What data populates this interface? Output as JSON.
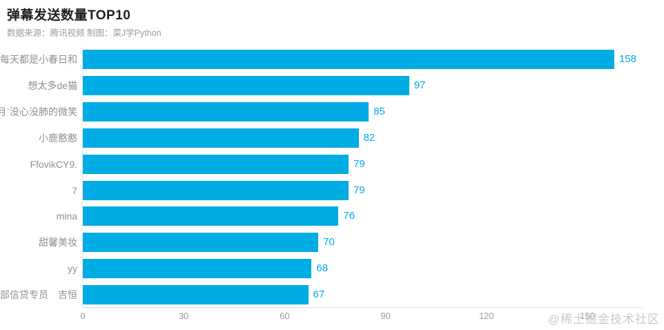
{
  "page": {
    "background": "#ffffff"
  },
  "header": {
    "title": "弹幕发送数量TOP10",
    "subtitle": "数据来源：腾讯视频  制图：菜J学Python"
  },
  "watermark": "@稀土掘金技术社区",
  "chart_data": {
    "type": "bar",
    "orientation": "horizontal",
    "title": "弹幕发送数量TOP10",
    "subtitle": "数据来源：腾讯视频  制图：菜J学Python",
    "categories": [
      "每天都是小春日和",
      "想太多de猫",
      "月`没心没肺的微笑",
      "小鹿憨憨",
      "FfovikCY9.",
      "7",
      "mina",
      "甜馨美妆",
      "yy",
      "部信贷专员　吉恒"
    ],
    "values": [
      158,
      97,
      85,
      82,
      79,
      79,
      76,
      70,
      68,
      67
    ],
    "x_ticks": [
      0,
      30,
      60,
      90,
      120,
      150
    ],
    "xlim": [
      0,
      150
    ],
    "xlabel": "",
    "ylabel": "",
    "grid": false,
    "legend_position": "none",
    "bar_color": "#00ace4",
    "value_label_color": "#00ace4",
    "axis_line_color": "#dcdcdc",
    "category_label_color": "#8f8f8f",
    "tick_label_color": "#9b9b9b"
  }
}
